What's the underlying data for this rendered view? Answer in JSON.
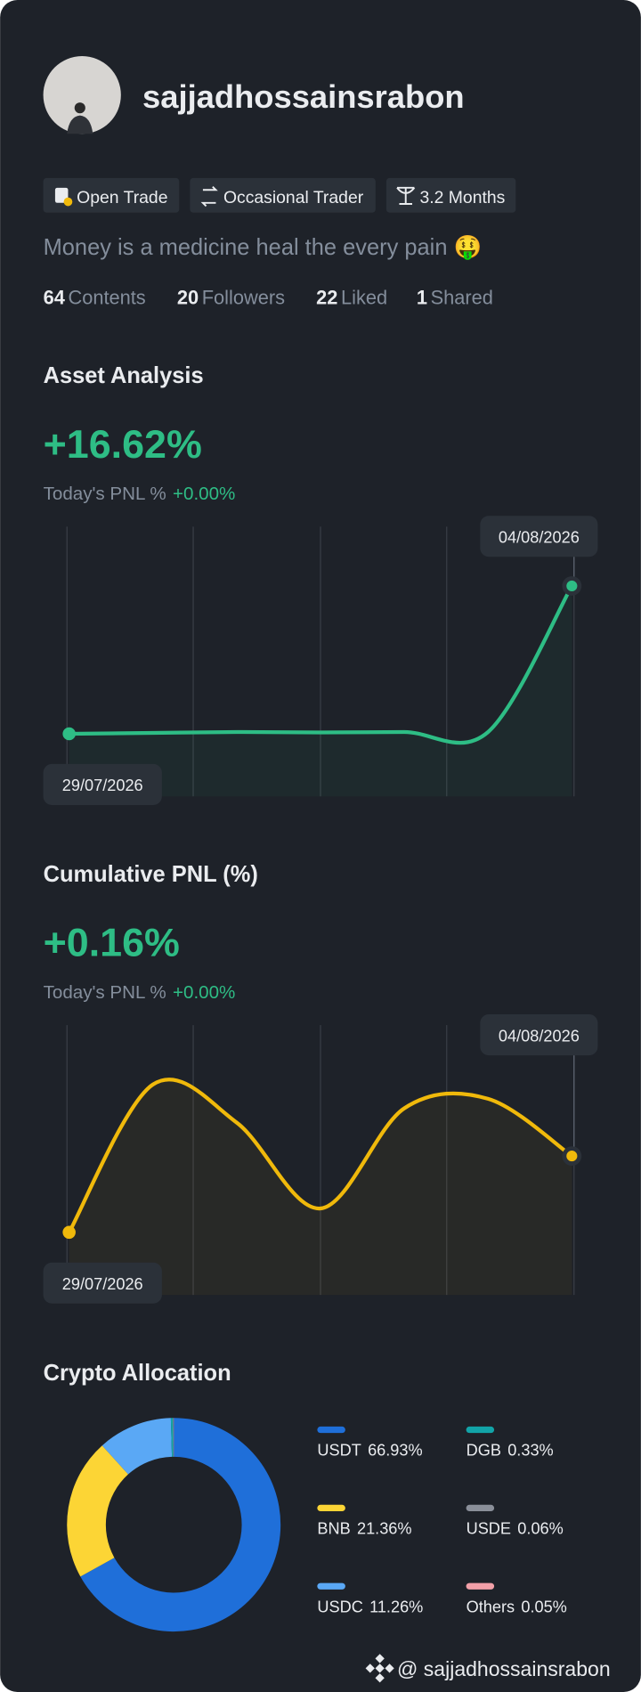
{
  "profile": {
    "username": "sajjadhossainsrabon",
    "tags": [
      "Open Trade",
      "Occasional Trader",
      "3.2 Months"
    ],
    "bio": "Money is a medicine heal the every pain 🤑",
    "stats": [
      {
        "value": "64",
        "label": "Contents"
      },
      {
        "value": "20",
        "label": "Followers"
      },
      {
        "value": "22",
        "label": "Liked"
      },
      {
        "value": "1",
        "label": "Shared"
      }
    ]
  },
  "chart_data": [
    {
      "type": "line",
      "title": "Asset Analysis",
      "headline": "+16.62%",
      "today_label": "Today's PNL %",
      "today_value": "+0.00%",
      "categories": [
        "29/07/2026",
        null,
        null,
        null,
        null,
        null,
        "04/08/2026"
      ],
      "values": [
        0,
        0.1,
        0.2,
        0.15,
        0.2,
        0.2,
        16.62
      ],
      "color": "#2ebd85"
    },
    {
      "type": "line",
      "title": "Cumulative PNL (%)",
      "headline": "+0.16%",
      "today_label": "Today's PNL %",
      "today_value": "+0.00%",
      "categories": [
        "29/07/2026",
        null,
        null,
        null,
        null,
        null,
        "04/08/2026"
      ],
      "values": [
        0,
        0.31,
        0.23,
        0.05,
        0.26,
        0.28,
        0.16
      ],
      "color": "#f0b90b"
    },
    {
      "type": "pie",
      "title": "Crypto Allocation",
      "categories": [
        "USDT",
        "BNB",
        "USDC",
        "DGB",
        "USDE",
        "Others"
      ],
      "values": [
        66.93,
        21.36,
        11.26,
        0.33,
        0.06,
        0.05
      ],
      "value_labels": [
        "66.93%",
        "21.36%",
        "11.26%",
        "0.33%",
        "0.06%",
        "0.05%"
      ],
      "colors": [
        "#1f6fd9",
        "#fcd535",
        "#5aa8f5",
        "#12a4a8",
        "#8a8f99",
        "#f2a0a8"
      ]
    }
  ],
  "footer": {
    "handle": "@ sajjadhossainsrabon"
  }
}
